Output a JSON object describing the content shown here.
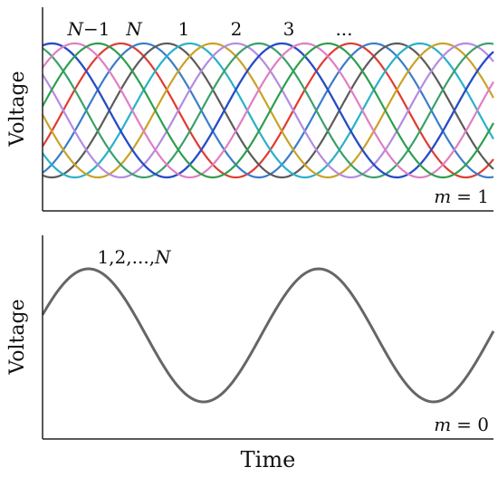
{
  "chart_data": [
    {
      "type": "line",
      "panel": "top",
      "ylabel": "Voltage",
      "mode_label": {
        "var": "m",
        "eq": "= 1"
      },
      "phase_labels": [
        {
          "text": "N−1",
          "italic_prefix": "N",
          "suffix": "−1"
        },
        {
          "text": "N",
          "italic_prefix": "N",
          "suffix": ""
        },
        {
          "text": "1",
          "italic_prefix": "",
          "suffix": "1"
        },
        {
          "text": "2",
          "italic_prefix": "",
          "suffix": "2"
        },
        {
          "text": "3",
          "italic_prefix": "",
          "suffix": "3"
        },
        {
          "text": "...",
          "italic_prefix": "",
          "suffix": "..."
        }
      ],
      "period": 1.0,
      "x_range": [
        0,
        1.96
      ],
      "amplitude": 1,
      "series_peaks": [
        {
          "color": "#E03C31",
          "peak_x": 0.34
        },
        {
          "color": "#3A7DC9",
          "peak_x": 0.44
        },
        {
          "color": "#5B5B5B",
          "peak_x": 0.54
        },
        {
          "color": "#29B1C9",
          "peak_x": 0.64
        },
        {
          "color": "#C9A227",
          "peak_x": 0.74
        },
        {
          "color": "#B58BE0",
          "peak_x": 0.84
        },
        {
          "color": "#3BA06A",
          "peak_x": 0.94
        },
        {
          "color": "#D05A4A",
          "peak_x": 1.04
        },
        {
          "color": "#1F4FCF",
          "peak_x": 0.04
        },
        {
          "color": "#DE7FC4",
          "peak_x": 0.14
        },
        {
          "color": "#2E9E4F",
          "peak_x": 0.24
        }
      ]
    },
    {
      "type": "line",
      "panel": "bottom",
      "ylabel": "Voltage",
      "xlabel": "Time",
      "mode_label": {
        "var": "m",
        "eq": "= 0"
      },
      "curve_label": {
        "plain": "1,2,...,",
        "italic": "N"
      },
      "period": 1.0,
      "x_range": [
        0,
        1.96
      ],
      "peak_x": 0.2,
      "color": "#666666"
    }
  ]
}
